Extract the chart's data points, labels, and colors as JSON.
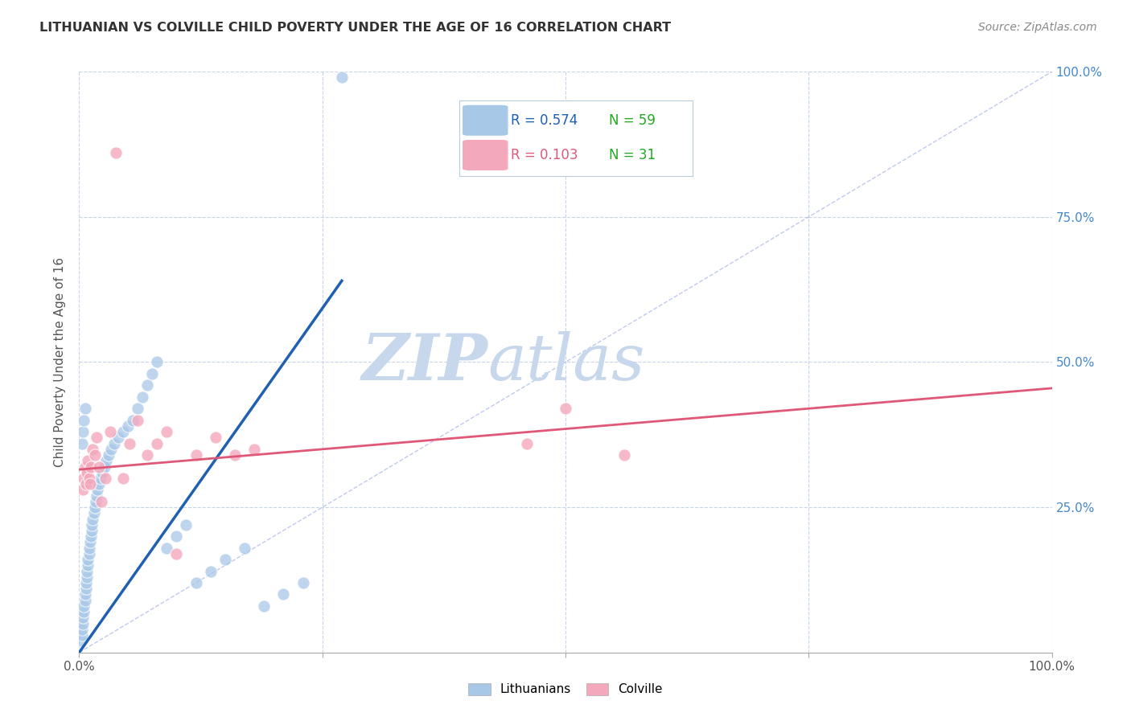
{
  "title": "LITHUANIAN VS COLVILLE CHILD POVERTY UNDER THE AGE OF 16 CORRELATION CHART",
  "source": "Source: ZipAtlas.com",
  "ylabel": "Child Poverty Under the Age of 16",
  "xlim": [
    0,
    1
  ],
  "ylim": [
    0,
    1
  ],
  "legend_r_blue": "R = 0.574",
  "legend_n_blue": "N = 59",
  "legend_r_pink": "R = 0.103",
  "legend_n_pink": "N = 31",
  "blue_color": "#A8C8E8",
  "pink_color": "#F4A8BC",
  "blue_line_color": "#2060B0",
  "pink_line_color": "#E05878",
  "diagonal_color": "#B0BCE8",
  "watermark_zip": "ZIP",
  "watermark_atlas": "atlas",
  "watermark_color_zip": "#C8D8EC",
  "watermark_color_atlas": "#C8D8EC",
  "background_color": "#FFFFFF",
  "grid_color": "#C8D4E8",
  "blue_scatter_x": [
    0.002,
    0.003,
    0.003,
    0.004,
    0.004,
    0.005,
    0.005,
    0.006,
    0.006,
    0.007,
    0.007,
    0.008,
    0.008,
    0.009,
    0.009,
    0.01,
    0.01,
    0.011,
    0.012,
    0.013,
    0.013,
    0.014,
    0.015,
    0.016,
    0.017,
    0.018,
    0.019,
    0.02,
    0.022,
    0.024,
    0.026,
    0.028,
    0.03,
    0.033,
    0.036,
    0.04,
    0.045,
    0.05,
    0.055,
    0.06,
    0.065,
    0.07,
    0.075,
    0.08,
    0.09,
    0.1,
    0.11,
    0.12,
    0.135,
    0.15,
    0.17,
    0.19,
    0.21,
    0.23,
    0.003,
    0.004,
    0.005,
    0.006,
    0.27
  ],
  "blue_scatter_y": [
    0.02,
    0.03,
    0.04,
    0.05,
    0.06,
    0.07,
    0.08,
    0.09,
    0.1,
    0.11,
    0.12,
    0.13,
    0.14,
    0.15,
    0.16,
    0.17,
    0.18,
    0.19,
    0.2,
    0.21,
    0.22,
    0.23,
    0.24,
    0.25,
    0.26,
    0.27,
    0.28,
    0.29,
    0.3,
    0.31,
    0.32,
    0.33,
    0.34,
    0.35,
    0.36,
    0.37,
    0.38,
    0.39,
    0.4,
    0.42,
    0.44,
    0.46,
    0.48,
    0.5,
    0.18,
    0.2,
    0.22,
    0.12,
    0.14,
    0.16,
    0.18,
    0.08,
    0.1,
    0.12,
    0.36,
    0.38,
    0.4,
    0.42,
    0.99
  ],
  "pink_scatter_x": [
    0.004,
    0.005,
    0.006,
    0.007,
    0.008,
    0.009,
    0.01,
    0.011,
    0.012,
    0.014,
    0.016,
    0.018,
    0.02,
    0.023,
    0.027,
    0.032,
    0.038,
    0.045,
    0.052,
    0.06,
    0.07,
    0.08,
    0.09,
    0.1,
    0.12,
    0.14,
    0.16,
    0.18,
    0.46,
    0.5,
    0.56
  ],
  "pink_scatter_y": [
    0.28,
    0.3,
    0.32,
    0.29,
    0.31,
    0.33,
    0.3,
    0.29,
    0.32,
    0.35,
    0.34,
    0.37,
    0.32,
    0.26,
    0.3,
    0.38,
    0.86,
    0.3,
    0.36,
    0.4,
    0.34,
    0.36,
    0.38,
    0.17,
    0.34,
    0.37,
    0.34,
    0.35,
    0.36,
    0.42,
    0.34
  ],
  "blue_line_x": [
    0.0,
    0.27
  ],
  "blue_line_y": [
    0.0,
    0.64
  ],
  "pink_line_x": [
    0.0,
    1.0
  ],
  "pink_line_y": [
    0.315,
    0.455
  ]
}
